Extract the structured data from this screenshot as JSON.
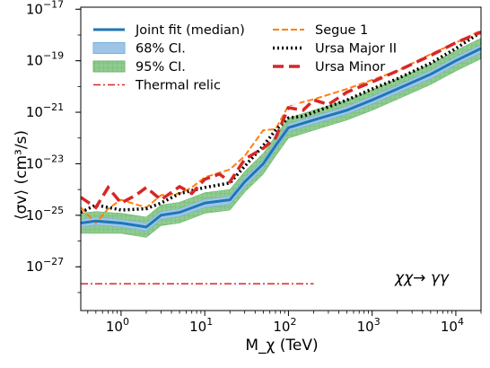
{
  "chart_data": {
    "type": "line",
    "xlabel": "M_χ (TeV)",
    "ylabel": "⟨σv⟩ (cm³/s)",
    "xscale": "log",
    "yscale": "log",
    "xlim": [
      0.33,
      20000
    ],
    "ylim": [
      2e-29,
      1.2e-17
    ],
    "grid": false,
    "legend_position": "top-left (two columns)",
    "annotation": "χχ→ γγ",
    "x_ticks": [
      {
        "value": 1,
        "base": "10",
        "exp": "0"
      },
      {
        "value": 10,
        "base": "10",
        "exp": "1"
      },
      {
        "value": 100,
        "base": "10",
        "exp": "2"
      },
      {
        "value": 1000,
        "base": "10",
        "exp": "3"
      },
      {
        "value": 10000,
        "base": "10",
        "exp": "4"
      }
    ],
    "y_ticks": [
      {
        "value": 1e-27,
        "base": "10",
        "exp": "−27"
      },
      {
        "value": 1e-25,
        "base": "10",
        "exp": "−25"
      },
      {
        "value": 1e-23,
        "base": "10",
        "exp": "−23"
      },
      {
        "value": 1e-21,
        "base": "10",
        "exp": "−21"
      },
      {
        "value": 1e-19,
        "base": "10",
        "exp": "−19"
      },
      {
        "value": 1e-17,
        "base": "10",
        "exp": "−17"
      }
    ],
    "x": [
      0.33,
      0.5,
      1,
      2,
      3,
      5,
      10,
      20,
      30,
      50,
      70,
      100,
      200,
      500,
      1000,
      2000,
      5000,
      10000,
      20000
    ],
    "series": [
      {
        "name": "Joint fit (median)",
        "kind": "median",
        "color": "#1f77b4",
        "values": [
          5e-26,
          6e-26,
          5e-26,
          3.5e-26,
          1e-25,
          1.3e-25,
          3e-25,
          4e-25,
          2e-24,
          1e-23,
          5e-23,
          2.5e-22,
          5e-22,
          1.2e-21,
          3e-21,
          8e-21,
          3e-20,
          1e-19,
          3e-19
        ]
      },
      {
        "name": "68% CI.",
        "kind": "band",
        "color": "#1f77b4",
        "low": [
          3.5e-26,
          4.2e-26,
          3.5e-26,
          2.4e-26,
          7e-26,
          9e-26,
          2e-25,
          2.7e-25,
          1.3e-24,
          7e-24,
          3.5e-23,
          1.8e-22,
          3.5e-22,
          8.5e-22,
          2.1e-21,
          5.5e-21,
          2e-20,
          7e-20,
          2e-19
        ],
        "high": [
          7e-26,
          8.5e-26,
          7e-26,
          5e-26,
          1.4e-25,
          1.8e-25,
          4.2e-25,
          5.6e-25,
          2.8e-24,
          1.4e-23,
          7e-23,
          3.5e-22,
          7e-22,
          1.7e-21,
          4.2e-21,
          1.1e-20,
          4.2e-20,
          1.4e-19,
          4.2e-19
        ]
      },
      {
        "name": "95% CI.",
        "kind": "band",
        "color": "#2ca02c",
        "low": [
          2e-26,
          2e-26,
          2e-26,
          1.4e-26,
          4e-26,
          5e-26,
          1.2e-25,
          1.6e-25,
          8e-25,
          4e-24,
          2e-23,
          1e-22,
          2e-22,
          5e-22,
          1.2e-21,
          3.2e-21,
          1.2e-20,
          4e-20,
          1.2e-19
        ],
        "high": [
          1.2e-25,
          1.4e-25,
          1.2e-25,
          8.5e-26,
          2.5e-25,
          3.2e-25,
          7.5e-25,
          1e-24,
          5e-24,
          2.5e-23,
          1.2e-22,
          6e-22,
          1.2e-21,
          3e-21,
          7.5e-21,
          2e-20,
          7.5e-20,
          2.5e-19,
          7.5e-19
        ]
      },
      {
        "name": "Thermal relic",
        "kind": "line",
        "color": "#d62728",
        "x": [
          0.33,
          200
        ],
        "values": [
          2.2e-28,
          2.2e-28
        ]
      },
      {
        "name": "Segue 1",
        "kind": "line",
        "color": "#ff7f0e",
        "x": [
          0.33,
          0.5,
          0.7,
          1,
          2,
          3,
          5,
          7,
          10,
          20,
          30,
          50,
          70,
          100,
          150,
          200,
          500,
          1000,
          2000,
          5000,
          10000,
          20000
        ],
        "values": [
          2e-25,
          5e-26,
          1.8e-25,
          4e-25,
          2e-25,
          6e-25,
          7e-25,
          1.2e-24,
          3e-24,
          6e-24,
          2e-23,
          2e-22,
          2.2e-22,
          1.8e-21,
          2.5e-21,
          3.2e-21,
          8e-21,
          1.8e-20,
          4e-20,
          1.8e-19,
          5e-19,
          1.5e-18
        ]
      },
      {
        "name": "Ursa Major II",
        "kind": "line",
        "color": "#000000",
        "x": [
          0.33,
          0.5,
          1,
          2,
          3,
          5,
          10,
          20,
          30,
          50,
          70,
          100,
          150,
          200,
          500,
          1000,
          2000,
          5000,
          10000,
          20000
        ],
        "values": [
          1.3e-25,
          2.5e-25,
          1.6e-25,
          1.8e-25,
          3e-25,
          7e-25,
          1.2e-24,
          1.8e-24,
          8e-24,
          5e-23,
          2e-22,
          6e-22,
          7e-22,
          1e-21,
          3e-21,
          8e-21,
          2e-20,
          8e-20,
          3e-19,
          1.3e-18
        ]
      },
      {
        "name": "Ursa Minor",
        "kind": "line",
        "color": "#d62728",
        "x": [
          0.33,
          0.5,
          0.7,
          1,
          1.5,
          2,
          3,
          5,
          7,
          10,
          15,
          20,
          30,
          50,
          70,
          100,
          150,
          200,
          300,
          500,
          1000,
          2000,
          5000,
          10000,
          20000
        ],
        "values": [
          5e-25,
          2e-25,
          1.2e-24,
          3e-25,
          6e-25,
          1.2e-24,
          4e-25,
          1.3e-24,
          7e-25,
          2.5e-24,
          4e-24,
          2e-24,
          1.5e-23,
          4e-23,
          1e-22,
          1.5e-21,
          1.2e-21,
          3e-21,
          2e-21,
          6e-21,
          1.5e-20,
          4e-20,
          1.6e-19,
          5e-19,
          1.3e-18
        ]
      }
    ]
  }
}
